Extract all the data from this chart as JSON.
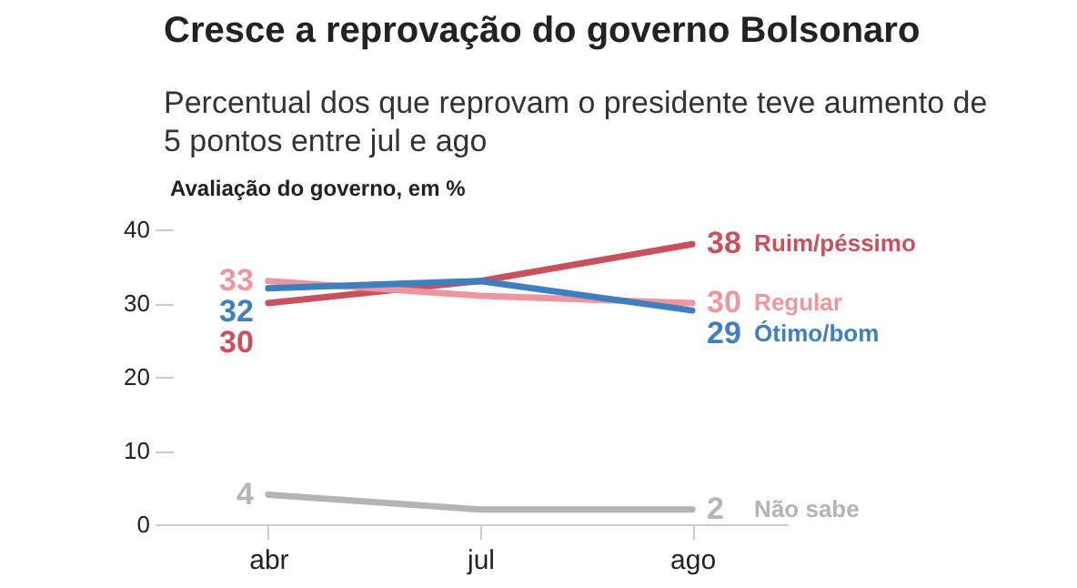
{
  "chart_data": {
    "type": "line",
    "title": "Cresce a reprovação do governo Bolsonaro",
    "subtitle": "Percentual dos que reprovam o presidente teve aumento de 5 pontos entre jul e ago",
    "ylabel": "Avaliação do governo, em %",
    "categories": [
      "abr",
      "jul",
      "ago"
    ],
    "ylim": [
      0,
      40
    ],
    "yticks": [
      0,
      10,
      20,
      30,
      40
    ],
    "legend": false,
    "series": [
      {
        "name": "Ruim/péssimo",
        "color": "#c9505f",
        "values": [
          30,
          33,
          38
        ],
        "value_labels": [
          "30",
          null,
          "38"
        ]
      },
      {
        "name": "Regular",
        "color": "#ee96a0",
        "values": [
          33,
          31,
          30
        ],
        "value_labels": [
          "33",
          null,
          "30"
        ]
      },
      {
        "name": "Ótimo/bom",
        "color": "#3f7fc0",
        "values": [
          32,
          33,
          29
        ],
        "value_labels": [
          "32",
          null,
          "29"
        ]
      },
      {
        "name": "Não sabe",
        "color": "#b4b4b4",
        "values": [
          4,
          2,
          2
        ],
        "value_labels": [
          "4",
          null,
          "2"
        ]
      }
    ]
  }
}
